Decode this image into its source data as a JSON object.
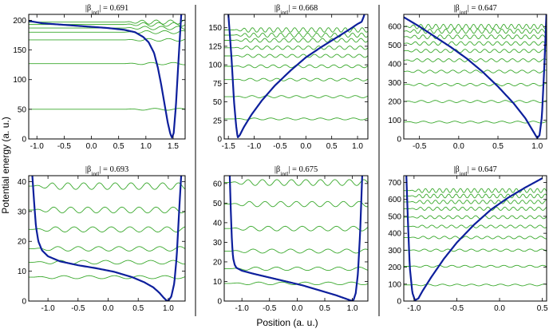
{
  "figure": {
    "ylabel": "Potential energy (a. u.)",
    "xlabel": "Position (a. u.)"
  },
  "colors": {
    "potential": "#0d1f9c",
    "wave": "#3aa92d",
    "frame": "#000000"
  },
  "chart_data": [
    {
      "type": "line",
      "title": "|β_intl| = 0.691",
      "beta": "0.691",
      "xlim": [
        -1.15,
        1.72
      ],
      "ylim": [
        0,
        210
      ],
      "xticks": [
        -1.0,
        -0.5,
        0.0,
        0.5,
        1.0,
        1.5
      ],
      "xtick_labels": [
        "-1.0",
        "-0.5",
        "0.0",
        "0.5",
        "1.0",
        "1.5"
      ],
      "yticks": [
        0,
        50,
        100,
        150,
        200
      ],
      "ytick_labels": [
        "0",
        "50",
        "100",
        "150",
        "200"
      ],
      "potential": {
        "x": [
          -1.15,
          -0.9,
          -0.6,
          -0.3,
          0.0,
          0.3,
          0.6,
          0.8,
          0.95,
          1.05,
          1.15,
          1.22,
          1.28,
          1.34,
          1.4,
          1.45,
          1.48,
          1.51,
          1.55,
          1.6,
          1.65
        ],
        "y": [
          199,
          195,
          193,
          191,
          189,
          187,
          184,
          180,
          172,
          163,
          145,
          120,
          92,
          60,
          28,
          8,
          2,
          10,
          55,
          135,
          212
        ]
      },
      "levels": [
        50,
        127,
        167,
        180,
        187,
        193,
        197
      ],
      "wave_amp": 3.5,
      "wave_period": 0.45,
      "wave_start": 0.6
    },
    {
      "type": "line",
      "title": "|β_intl| = 0.668",
      "beta": "0.668",
      "xlim": [
        -1.58,
        1.2
      ],
      "ylim": [
        0,
        168
      ],
      "xticks": [
        -1.5,
        -1.0,
        -0.5,
        0.0,
        0.5,
        1.0
      ],
      "xtick_labels": [
        "-1.5",
        "-1.0",
        "-0.5",
        "0.0",
        "0.5",
        "1.0"
      ],
      "yticks": [
        0,
        25,
        50,
        75,
        100,
        125,
        150
      ],
      "ytick_labels": [
        "0",
        "25",
        "50",
        "75",
        "100",
        "125",
        "150"
      ],
      "potential": {
        "x": [
          -1.5,
          -1.44,
          -1.39,
          -1.35,
          -1.32,
          -1.28,
          -1.2,
          -1.05,
          -0.85,
          -0.6,
          -0.3,
          0.0,
          0.3,
          0.6,
          0.85,
          1.0,
          1.08,
          1.12,
          1.15
        ],
        "y": [
          168,
          110,
          50,
          18,
          2,
          5,
          16,
          33,
          52,
          72,
          92,
          110,
          124,
          137,
          148,
          155,
          158,
          165,
          172
        ]
      },
      "levels": [
        27,
        57,
        80,
        98,
        112,
        123,
        133,
        140,
        147
      ],
      "wave_amp": 3.0,
      "wave_period": 0.32,
      "wave_start": -1.4
    },
    {
      "type": "line",
      "title": "|β_intl| = 0.647",
      "beta": "0.647",
      "xlim": [
        -0.7,
        1.12
      ],
      "ylim": [
        0,
        665
      ],
      "xticks": [
        -0.5,
        0.0,
        0.5,
        1.0
      ],
      "xtick_labels": [
        "-0.5",
        "0.0",
        "0.5",
        "1.0"
      ],
      "yticks": [
        0,
        100,
        200,
        300,
        400,
        500,
        600
      ],
      "ytick_labels": [
        "0",
        "100",
        "200",
        "300",
        "400",
        "500",
        "600"
      ],
      "potential": {
        "x": [
          -0.7,
          -0.5,
          -0.3,
          -0.1,
          0.1,
          0.3,
          0.5,
          0.7,
          0.85,
          0.95,
          1.0,
          1.03,
          1.06,
          1.09,
          1.12
        ],
        "y": [
          650,
          600,
          545,
          490,
          430,
          360,
          280,
          190,
          110,
          40,
          5,
          20,
          120,
          380,
          690
        ]
      },
      "levels": [
        90,
        200,
        290,
        360,
        420,
        470,
        510,
        545,
        575,
        600
      ],
      "wave_amp": 12,
      "wave_period": 0.2,
      "wave_start": -0.7
    },
    {
      "type": "line",
      "title": "|β_intl| = 0.693",
      "beta": "0.693",
      "xlim": [
        -1.32,
        1.28
      ],
      "ylim": [
        0,
        42
      ],
      "xticks": [
        -1.0,
        -0.5,
        0.0,
        0.5,
        1.0
      ],
      "xtick_labels": [
        "-1.0",
        "-0.5",
        "0.0",
        "0.5",
        "1.0"
      ],
      "yticks": [
        0,
        10,
        20,
        30,
        40
      ],
      "ytick_labels": [
        "0",
        "10",
        "20",
        "30",
        "40"
      ],
      "potential": {
        "x": [
          -1.26,
          -1.23,
          -1.2,
          -1.16,
          -1.1,
          -1.0,
          -0.8,
          -0.5,
          -0.2,
          0.1,
          0.4,
          0.6,
          0.75,
          0.85,
          0.92,
          0.97,
          1.0,
          1.05,
          1.1,
          1.14,
          1.18,
          1.22
        ],
        "y": [
          42,
          33,
          25,
          20,
          17,
          15,
          13.3,
          12,
          11,
          9.8,
          8,
          6.3,
          4.6,
          2.8,
          1.2,
          0.2,
          0.1,
          1.5,
          6,
          15,
          30,
          44
        ]
      },
      "levels": [
        8,
        13,
        17.5,
        24,
        30.5,
        38.5
      ],
      "wave_amp": 1.1,
      "wave_period": 0.42,
      "wave_start": -1.26
    },
    {
      "type": "line",
      "title": "|β_intl| = 0.675",
      "beta": "0.675",
      "xlim": [
        -1.32,
        1.28
      ],
      "ylim": [
        0,
        64
      ],
      "xticks": [
        -1.0,
        -0.5,
        0.0,
        0.5,
        1.0
      ],
      "xtick_labels": [
        "-1.0",
        "-0.5",
        "0.0",
        "0.5",
        "1.0"
      ],
      "yticks": [
        0,
        10,
        20,
        30,
        40,
        50,
        60
      ],
      "ytick_labels": [
        "0",
        "10",
        "20",
        "30",
        "40",
        "50",
        "60"
      ],
      "potential": {
        "x": [
          -1.22,
          -1.2,
          -1.18,
          -1.16,
          -1.13,
          -1.1,
          -1.0,
          -0.8,
          -0.5,
          -0.2,
          0.1,
          0.4,
          0.7,
          0.9,
          0.98,
          1.02,
          1.06,
          1.1,
          1.14,
          1.18
        ],
        "y": [
          64,
          45,
          30,
          22,
          18.5,
          17,
          15.5,
          14,
          12,
          10,
          8,
          5.5,
          3,
          1,
          0.2,
          0.5,
          4,
          14,
          35,
          66
        ]
      },
      "levels": [
        9,
        16.5,
        25.5,
        37,
        49.5,
        60.5
      ],
      "wave_amp": 1.5,
      "wave_period": 0.42,
      "wave_start": -1.22
    },
    {
      "type": "line",
      "title": "|β_intl| = 0.647",
      "beta": "0.647",
      "xlim": [
        -1.12,
        0.55
      ],
      "ylim": [
        0,
        740
      ],
      "xticks": [
        -1.0,
        -0.5,
        0.0,
        0.5
      ],
      "xtick_labels": [
        "-1.0",
        "-0.5",
        "0.0",
        "0.5"
      ],
      "yticks": [
        0,
        100,
        200,
        300,
        400,
        500,
        600,
        700
      ],
      "ytick_labels": [
        "0",
        "100",
        "200",
        "300",
        "400",
        "500",
        "600",
        "700"
      ],
      "potential": {
        "x": [
          -1.09,
          -1.07,
          -1.05,
          -1.02,
          -0.99,
          -0.95,
          -0.9,
          -0.8,
          -0.65,
          -0.5,
          -0.3,
          -0.1,
          0.1,
          0.3,
          0.5
        ],
        "y": [
          740,
          450,
          200,
          50,
          5,
          15,
          60,
          140,
          250,
          345,
          450,
          540,
          610,
          670,
          725
        ]
      },
      "levels": [
        95,
        205,
        300,
        375,
        440,
        495,
        545,
        585,
        620,
        652
      ],
      "wave_amp": 12,
      "wave_period": 0.17,
      "wave_start": -1.05
    }
  ]
}
